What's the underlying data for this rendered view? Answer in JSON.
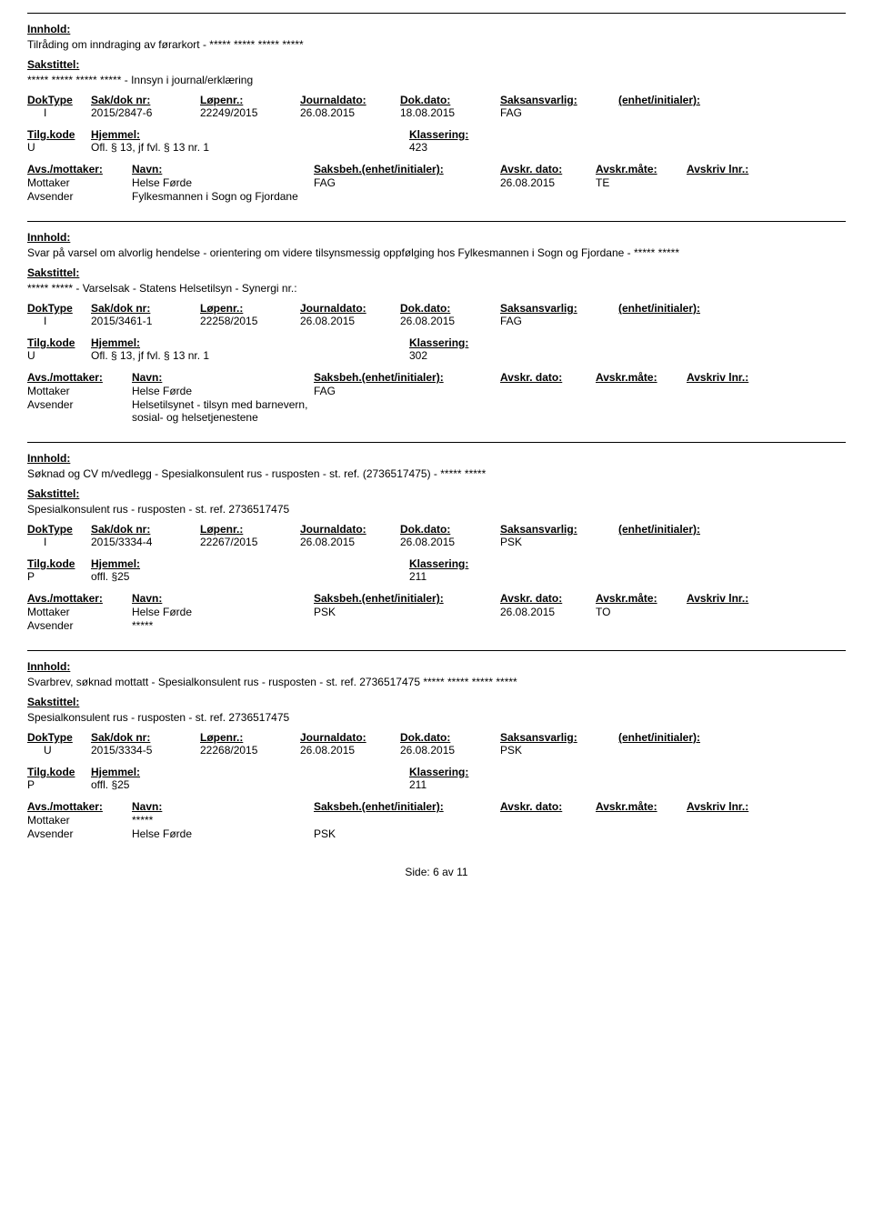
{
  "labels": {
    "innhold": "Innhold:",
    "sakstittel": "Sakstittel:",
    "doktype": "DokType",
    "sakdok": "Sak/dok nr:",
    "lopenr": "Løpenr.:",
    "journaldato": "Journaldato:",
    "dokdato": "Dok.dato:",
    "saksansvarlig": "Saksansvarlig:",
    "enhet": "(enhet/initialer):",
    "tilgkode": "Tilg.kode",
    "hjemmel": "Hjemmel:",
    "klassering": "Klassering:",
    "avsmottaker": "Avs./mottaker:",
    "navn": "Navn:",
    "saksbeh": "Saksbeh.(enhet/initialer):",
    "avskrdato": "Avskr. dato:",
    "avskrmate": "Avskr.måte:",
    "avskrivlnr": "Avskriv lnr.:",
    "mottaker": "Mottaker",
    "avsender": "Avsender"
  },
  "records": [
    {
      "innhold": "Tilråding om inndraging av førarkort - ***** ***** ***** *****",
      "sakstittel": "***** ***** ***** ***** - Innsyn i journal/erklæring",
      "doktype": "I",
      "sakdok": "2015/2847-6",
      "lopenr": "22249/2015",
      "journaldato": "26.08.2015",
      "dokdato": "18.08.2015",
      "saksansvarlig": "FAG",
      "tilgkode": "U",
      "hjemmel": "Ofl. § 13, jf fvl. § 13 nr. 1",
      "klassering": "423",
      "parties": [
        {
          "role": "Mottaker",
          "name": "Helse Førde",
          "saksbeh": "FAG",
          "avskrdato": "26.08.2015",
          "avskrmate": "TE"
        },
        {
          "role": "Avsender",
          "name": "Fylkesmannen i Sogn og Fjordane",
          "saksbeh": "",
          "avskrdato": "",
          "avskrmate": ""
        }
      ]
    },
    {
      "innhold": "Svar på varsel om alvorlig hendelse - orientering om videre tilsynsmessig oppfølging hos Fylkesmannen i Sogn og Fjordane - ***** *****",
      "sakstittel": "***** ***** - Varselsak - Statens Helsetilsyn - Synergi nr.:",
      "doktype": "I",
      "sakdok": "2015/3461-1",
      "lopenr": "22258/2015",
      "journaldato": "26.08.2015",
      "dokdato": "26.08.2015",
      "saksansvarlig": "FAG",
      "tilgkode": "U",
      "hjemmel": "Ofl. § 13, jf fvl. § 13 nr. 1",
      "klassering": "302",
      "parties": [
        {
          "role": "Mottaker",
          "name": "Helse Førde",
          "saksbeh": "FAG",
          "avskrdato": "",
          "avskrmate": ""
        },
        {
          "role": "Avsender",
          "name": "Helsetilsynet - tilsyn med barnevern, sosial- og helsetjenestene",
          "saksbeh": "",
          "avskrdato": "",
          "avskrmate": ""
        }
      ]
    },
    {
      "innhold": "Søknad og CV m/vedlegg - Spesialkonsulent rus - rusposten - st. ref. (2736517475) - ***** *****",
      "sakstittel": "Spesialkonsulent rus - rusposten  - st. ref. 2736517475",
      "doktype": "I",
      "sakdok": "2015/3334-4",
      "lopenr": "22267/2015",
      "journaldato": "26.08.2015",
      "dokdato": "26.08.2015",
      "saksansvarlig": "PSK",
      "tilgkode": "P",
      "hjemmel": "offl. §25",
      "klassering": "211",
      "parties": [
        {
          "role": "Mottaker",
          "name": "Helse Førde",
          "saksbeh": "PSK",
          "avskrdato": "26.08.2015",
          "avskrmate": "TO"
        },
        {
          "role": "Avsender",
          "name": "*****",
          "saksbeh": "",
          "avskrdato": "",
          "avskrmate": ""
        }
      ]
    },
    {
      "innhold": "Svarbrev, søknad mottatt - Spesialkonsulent rus - rusposten  - st. ref. 2736517475 ***** ***** ***** *****",
      "sakstittel": "Spesialkonsulent rus - rusposten  - st. ref. 2736517475",
      "doktype": "U",
      "sakdok": "2015/3334-5",
      "lopenr": "22268/2015",
      "journaldato": "26.08.2015",
      "dokdato": "26.08.2015",
      "saksansvarlig": "PSK",
      "tilgkode": "P",
      "hjemmel": "offl. §25",
      "klassering": "211",
      "parties": [
        {
          "role": "Mottaker",
          "name": "*****",
          "saksbeh": "",
          "avskrdato": "",
          "avskrmate": ""
        },
        {
          "role": "Avsender",
          "name": "Helse Førde",
          "saksbeh": "PSK",
          "avskrdato": "",
          "avskrmate": ""
        }
      ]
    }
  ],
  "footer": {
    "side": "Side:",
    "page": "6",
    "av": "av",
    "total": "11"
  }
}
